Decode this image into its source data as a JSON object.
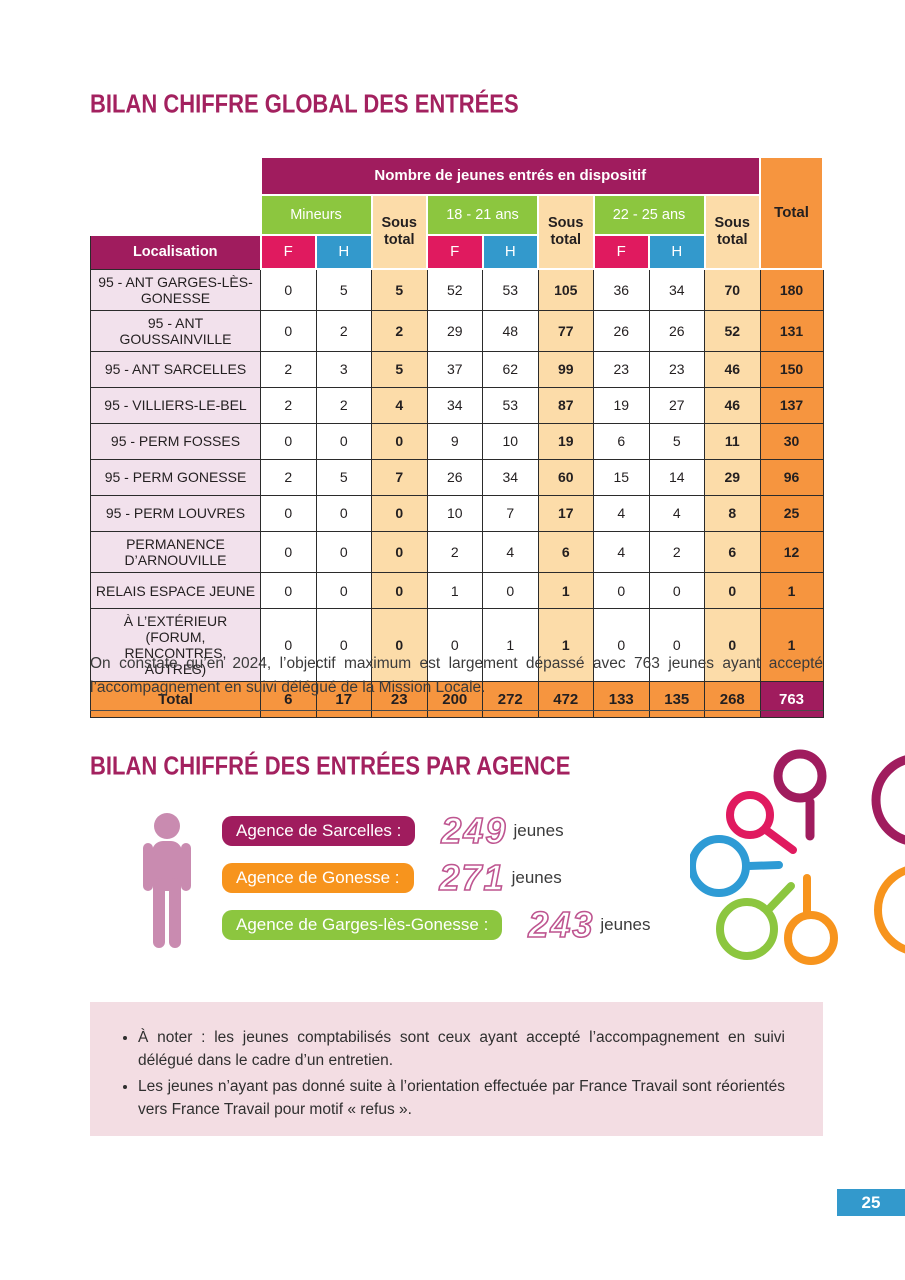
{
  "page": {
    "number": "25"
  },
  "section1": {
    "title": "BILAN CHIFFRE GLOBAL DES ENTRÉES",
    "table": {
      "top_header": "Nombre de jeunes entrés en dispositif",
      "loc_header": "Localisation",
      "group_headers": [
        "Mineurs",
        "18 - 21 ans",
        "22 - 25 ans"
      ],
      "sous_total_label": "Sous total",
      "total_label": "Total",
      "sex_headers": [
        "F",
        "H"
      ],
      "rows": [
        {
          "label": "95 - ANT GARGES-LÈS-GONESSE",
          "values": [
            0,
            5,
            5,
            52,
            53,
            105,
            36,
            34,
            70,
            180
          ]
        },
        {
          "label": "95 - ANT GOUSSAINVILLE",
          "values": [
            0,
            2,
            2,
            29,
            48,
            77,
            26,
            26,
            52,
            131
          ]
        },
        {
          "label": "95 - ANT SARCELLES",
          "values": [
            2,
            3,
            5,
            37,
            62,
            99,
            23,
            23,
            46,
            150
          ]
        },
        {
          "label": "95 - VILLIERS-LE-BEL",
          "values": [
            2,
            2,
            4,
            34,
            53,
            87,
            19,
            27,
            46,
            137
          ]
        },
        {
          "label": "95 - PERM FOSSES",
          "values": [
            0,
            0,
            0,
            9,
            10,
            19,
            6,
            5,
            11,
            30
          ]
        },
        {
          "label": "95 - PERM GONESSE",
          "values": [
            2,
            5,
            7,
            26,
            34,
            60,
            15,
            14,
            29,
            96
          ]
        },
        {
          "label": "95 - PERM LOUVRES",
          "values": [
            0,
            0,
            0,
            10,
            7,
            17,
            4,
            4,
            8,
            25
          ]
        },
        {
          "label": "PERMANENCE D’ARNOUVILLE",
          "values": [
            0,
            0,
            0,
            2,
            4,
            6,
            4,
            2,
            6,
            12
          ]
        },
        {
          "label": "RELAIS ESPACE JEUNE",
          "values": [
            0,
            0,
            0,
            1,
            0,
            1,
            0,
            0,
            0,
            1
          ]
        },
        {
          "label": "À L’EXTÉRIEUR (FORUM, RENCONTRES, AUTRES)",
          "values": [
            0,
            0,
            0,
            0,
            1,
            1,
            0,
            0,
            0,
            1
          ]
        }
      ],
      "total_row": {
        "label": "Total",
        "values": [
          6,
          17,
          23,
          200,
          272,
          472,
          133,
          135,
          268,
          763
        ]
      }
    },
    "paragraph": "On constate qu’en 2024, l’objectif maximum est largement dépassé avec 763 jeunes ayant accepté l’accompagnement en suivi délégué de la Mission Locale."
  },
  "section2": {
    "title": "BILAN CHIFFRÉ DES ENTRÉES PAR AGENCE",
    "agencies": [
      {
        "label": "Agence de Sarcelles :",
        "count": "249",
        "unit": "jeunes",
        "color": "#A01C5E"
      },
      {
        "label": "Agence de Gonesse :",
        "count": "271",
        "unit": "jeunes",
        "color": "#F7941D"
      },
      {
        "label": "Agence de Garges-lès-Gonesse :",
        "count": "243",
        "unit": "jeunes",
        "color": "#8CC63F"
      }
    ]
  },
  "note_box": {
    "bullets": [
      "À noter : les jeunes comptabilisés sont ceux ayant accepté l’accompagnement en suivi délégué dans le cadre d’un entretien.",
      "Les jeunes n’ayant pas donné suite à l’orientation effectuée par France Travail sont réorientés vers France Travail pour motif « refus »."
    ]
  },
  "colors": {
    "magenta": "#A01C5E",
    "pink_f": "#E01A5F",
    "blue_h": "#3399CC",
    "green": "#8CC63F",
    "peach": "#FCDCA9",
    "orange": "#F6953F",
    "row_label_bg": "#F2E1EC",
    "note_bg": "#F3DDE3",
    "person_icon": "#C98BB0",
    "count_outline": "#BE5590"
  },
  "chart_data": {
    "type": "table",
    "title": "Nombre de jeunes entrés en dispositif",
    "columns": [
      "Localisation",
      "Mineurs F",
      "Mineurs H",
      "Sous total",
      "18-21 F",
      "18-21 H",
      "Sous total",
      "22-25 F",
      "22-25 H",
      "Sous total",
      "Total"
    ],
    "rows": [
      [
        "95 - ANT GARGES-LÈS-GONESSE",
        0,
        5,
        5,
        52,
        53,
        105,
        36,
        34,
        70,
        180
      ],
      [
        "95 - ANT GOUSSAINVILLE",
        0,
        2,
        2,
        29,
        48,
        77,
        26,
        26,
        52,
        131
      ],
      [
        "95 - ANT SARCELLES",
        2,
        3,
        5,
        37,
        62,
        99,
        23,
        23,
        46,
        150
      ],
      [
        "95 - VILLIERS-LE-BEL",
        2,
        2,
        4,
        34,
        53,
        87,
        19,
        27,
        46,
        137
      ],
      [
        "95 - PERM FOSSES",
        0,
        0,
        0,
        9,
        10,
        19,
        6,
        5,
        11,
        30
      ],
      [
        "95 - PERM GONESSE",
        2,
        5,
        7,
        26,
        34,
        60,
        15,
        14,
        29,
        96
      ],
      [
        "95 - PERM LOUVRES",
        0,
        0,
        0,
        10,
        7,
        17,
        4,
        4,
        8,
        25
      ],
      [
        "PERMANENCE D’ARNOUVILLE",
        0,
        0,
        0,
        2,
        4,
        6,
        4,
        2,
        6,
        12
      ],
      [
        "RELAIS ESPACE JEUNE",
        0,
        0,
        0,
        1,
        0,
        1,
        0,
        0,
        0,
        1
      ],
      [
        "À L’EXTÉRIEUR (FORUM, RENCONTRES, AUTRES)",
        0,
        0,
        0,
        0,
        1,
        1,
        0,
        0,
        0,
        1
      ],
      [
        "Total",
        6,
        17,
        23,
        200,
        272,
        472,
        133,
        135,
        268,
        763
      ]
    ]
  }
}
